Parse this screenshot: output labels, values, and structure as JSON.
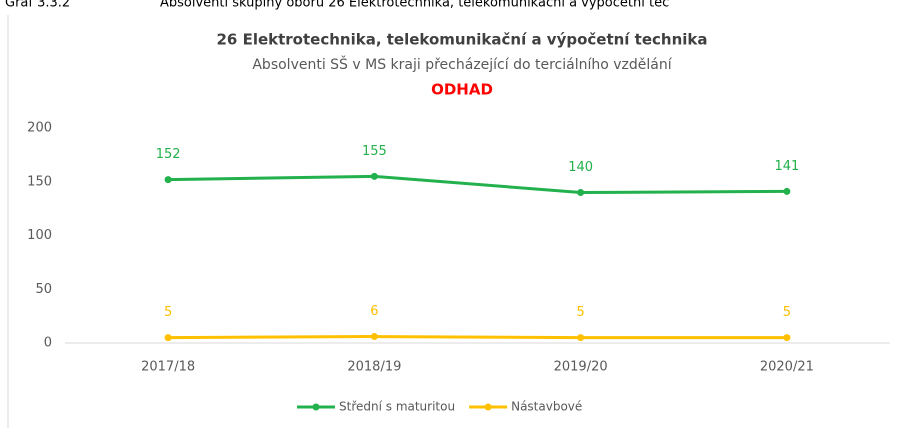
{
  "caption": {
    "number": "Graf 3.3.2",
    "text": "Absolventi skupiny oborů 26 Elektrotechnika, telekomunikační a výpočetní tec"
  },
  "chart_data": {
    "type": "line",
    "title": "26 Elektrotechnika, telekomunikační a výpočetní technika",
    "subtitle": "Absolventi SŠ v MS kraji  přecházející do terciálního vzdělání",
    "annotation": "ODHAD",
    "categories": [
      "2017/18",
      "2018/19",
      "2019/20",
      "2020/21"
    ],
    "series": [
      {
        "name": "Střední s maturitou",
        "color": "#22b14c",
        "values": [
          152,
          155,
          140,
          141
        ]
      },
      {
        "name": "Nástavbové",
        "color": "#ffc000",
        "values": [
          5,
          6,
          5,
          5
        ]
      }
    ],
    "ylim": [
      0,
      200
    ],
    "yticks": [
      0,
      50,
      100,
      150,
      200
    ],
    "grid": false,
    "legend": "bottom"
  }
}
